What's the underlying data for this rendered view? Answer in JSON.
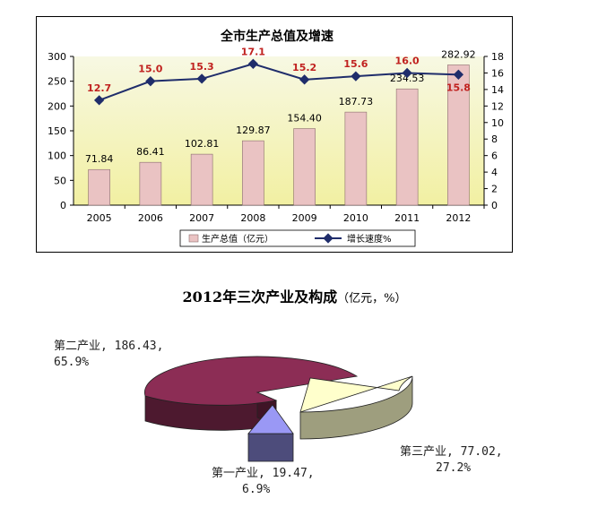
{
  "chart_data": [
    {
      "type": "bar+line",
      "title": "全市生产总值及增速",
      "categories": [
        "2005",
        "2006",
        "2007",
        "2008",
        "2009",
        "2010",
        "2011",
        "2012"
      ],
      "series": [
        {
          "name": "生产总值（亿元）",
          "type": "bar",
          "axis": "left",
          "values": [
            71.84,
            86.41,
            102.81,
            129.87,
            154.4,
            187.73,
            234.53,
            282.92
          ],
          "labels": [
            "71.84",
            "86.41",
            "102.81",
            "129.87",
            "154.40",
            "187.73",
            "234.53",
            "282.92"
          ],
          "color": "#eac3c3"
        },
        {
          "name": "增长速度%",
          "type": "line",
          "axis": "right",
          "values": [
            12.7,
            15.0,
            15.3,
            17.1,
            15.2,
            15.6,
            16.0,
            15.8
          ],
          "labels": [
            "12.7",
            "15.0",
            "15.3",
            "17.1",
            "15.2",
            "15.6",
            "16.0",
            "15.8"
          ],
          "color": "#1f2d6b",
          "label_color": "#c0211f"
        }
      ],
      "y_left": {
        "range": [
          0,
          300
        ],
        "ticks": [
          "0",
          "50",
          "100",
          "150",
          "200",
          "250",
          "300"
        ]
      },
      "y_right": {
        "range": [
          0,
          18
        ],
        "ticks": [
          "0",
          "2",
          "4",
          "6",
          "8",
          "10",
          "12",
          "14",
          "16",
          "18"
        ]
      },
      "plot_background": [
        "#f7f8e3",
        "#f2f0a2"
      ],
      "grid": false,
      "legend": "bottom"
    },
    {
      "type": "pie",
      "title": "2012年三次产业及构成",
      "title_unit": "（亿元，%）",
      "slices": [
        {
          "name": "第二产业",
          "value": 186.43,
          "percent": 65.9,
          "text": "第二产业, 186.43,",
          "pct_text": "65.9%",
          "color": "#8c2d55"
        },
        {
          "name": "第三产业",
          "value": 77.02,
          "percent": 27.2,
          "text": "第三产业, 77.02,",
          "pct_text": "27.2%",
          "color": "#ffffcc"
        },
        {
          "name": "第一产业",
          "value": 19.47,
          "percent": 6.9,
          "text": "第一产业, 19.47,",
          "pct_text": "6.9%",
          "color": "#9a98f5"
        }
      ],
      "style": "3d-exploded"
    }
  ]
}
